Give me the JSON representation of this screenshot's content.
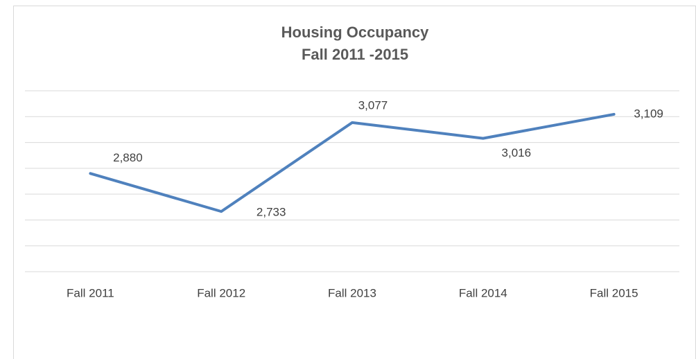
{
  "chart_data": {
    "type": "line",
    "title": "Housing Occupancy",
    "subtitle": "Fall 2011 -2015",
    "categories": [
      "Fall 2011",
      "Fall 2012",
      "Fall 2013",
      "Fall 2014",
      "Fall 2015"
    ],
    "series": [
      {
        "name": "Housing Occupancy",
        "color": "#4f81bd",
        "values": [
          2880,
          2733,
          3077,
          3016,
          3109
        ],
        "value_labels": [
          "2,880",
          "2,733",
          "3,077",
          "3,016",
          "3,109"
        ]
      }
    ],
    "ylim": [
      2500,
      3200
    ],
    "yticks": [
      2500,
      2600,
      2700,
      2800,
      2900,
      3000,
      3100,
      3200
    ],
    "grid": true
  }
}
